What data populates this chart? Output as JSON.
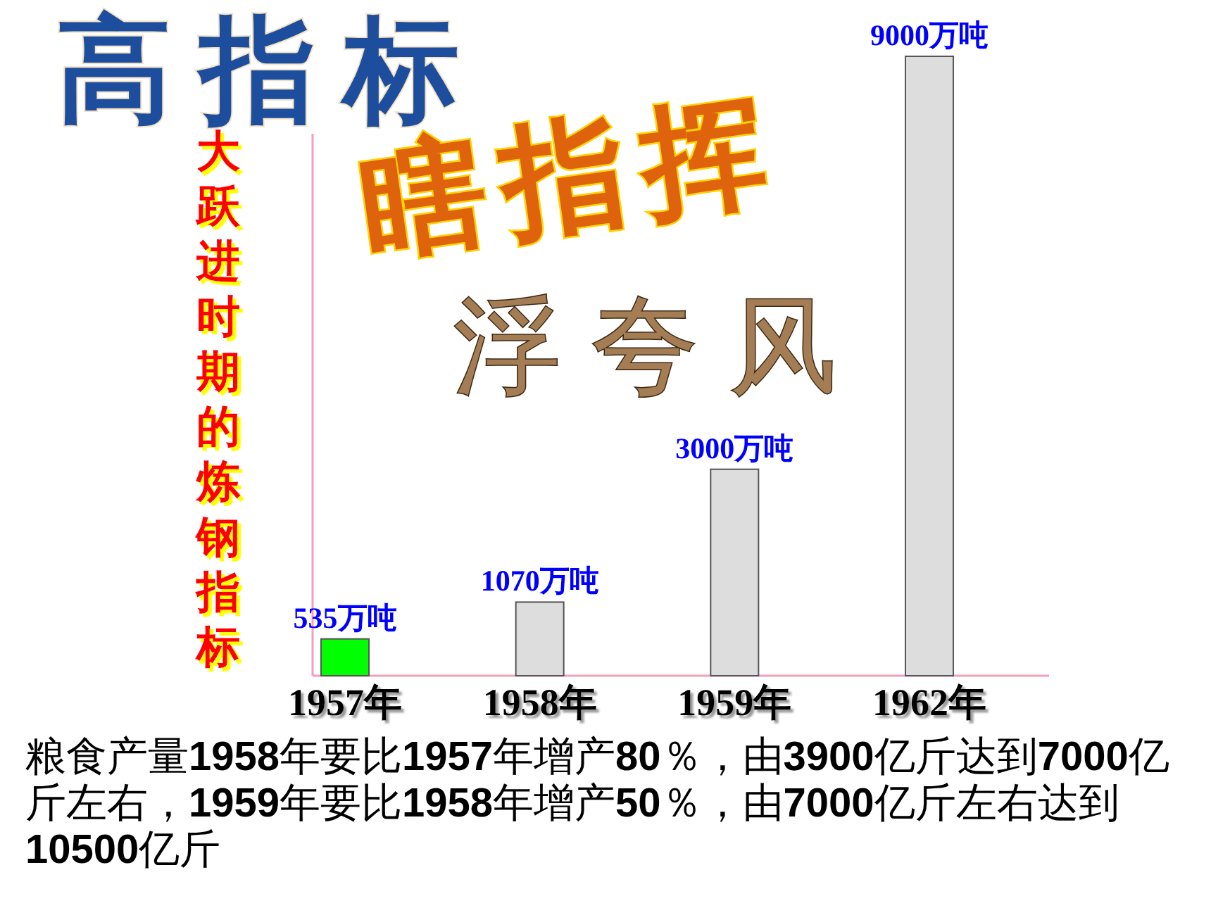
{
  "chart_data": {
    "type": "bar",
    "ylabel": "大跃进时期的炼钢指标",
    "annotations": [
      "高指标",
      "瞎指挥",
      "浮夸风",
      "粮食产量1958年要比1957年增产80％，由3900亿斤达到7000亿斤左右，1959年要比1958年增产50％，由7000亿斤左右达到10500亿斤"
    ],
    "categories": [
      "1957年",
      "1958年",
      "1959年",
      "1962年"
    ],
    "values": [
      535,
      1070,
      3000,
      9000
    ],
    "colors": [
      "#00ff00",
      "#dddddd",
      "#dddddd",
      "#dddddd"
    ],
    "value_labels": [
      "535万吨",
      "1070万吨",
      "3000万吨",
      "9000万吨"
    ],
    "tick_labels": "x"
  }
}
